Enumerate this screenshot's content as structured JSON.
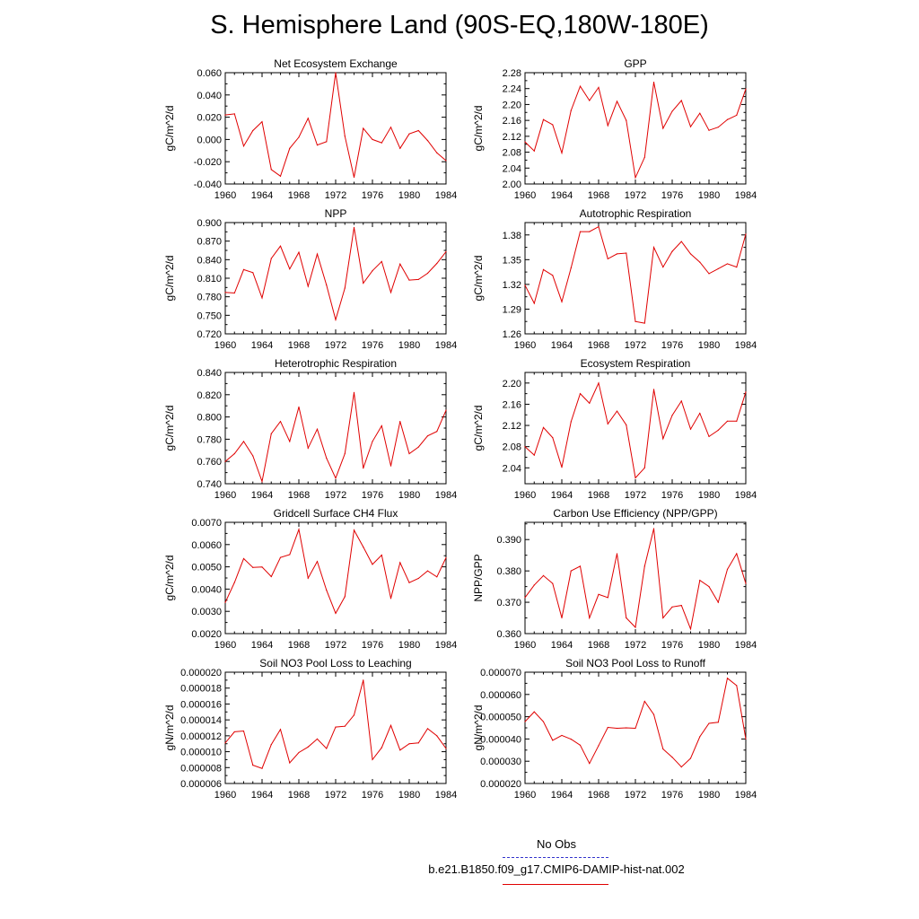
{
  "page": {
    "title": "S. Hemisphere Land (90S-EQ,180W-180E)"
  },
  "legend": {
    "obs_label": "No Obs",
    "obs_color": "#3333cc",
    "obs_style": "dashed",
    "model_label": "b.e21.B1850.f09_g17.CMIP6-DAMIP-hist-nat.002",
    "model_color": "#e00000"
  },
  "chart_data": [
    {
      "type": "line",
      "title": "Net Ecosystem Exchange",
      "ylabel": "gC/m^2/d",
      "xlim": [
        1960,
        1984
      ],
      "ylim": [
        -0.04,
        0.06
      ],
      "yticks": [
        "-0.040",
        "-0.020",
        "0.000",
        "0.020",
        "0.040",
        "0.060"
      ],
      "xticks": [
        "1960",
        "1964",
        "1968",
        "1972",
        "1976",
        "1980",
        "1984"
      ],
      "x": [
        1960,
        1961,
        1962,
        1963,
        1964,
        1965,
        1966,
        1967,
        1968,
        1969,
        1970,
        1971,
        1972,
        1973,
        1974,
        1975,
        1976,
        1977,
        1978,
        1979,
        1980,
        1981,
        1982,
        1983,
        1984
      ],
      "y": [
        0.022,
        0.023,
        -0.006,
        0.008,
        0.016,
        -0.027,
        -0.033,
        -0.008,
        0.002,
        0.019,
        -0.005,
        -0.002,
        0.06,
        0.003,
        -0.034,
        0.01,
        0.0,
        -0.003,
        0.011,
        -0.008,
        0.005,
        0.008,
        -0.001,
        -0.012,
        -0.019
      ],
      "color": "#e00000"
    },
    {
      "type": "line",
      "title": "GPP",
      "ylabel": "gC/m^2/d",
      "xlim": [
        1960,
        1984
      ],
      "ylim": [
        2.0,
        2.28
      ],
      "yticks": [
        "2.00",
        "2.04",
        "2.08",
        "2.12",
        "2.16",
        "2.20",
        "2.24",
        "2.28"
      ],
      "xticks": [
        "1960",
        "1964",
        "1968",
        "1972",
        "1976",
        "1980",
        "1984"
      ],
      "x": [
        1960,
        1961,
        1962,
        1963,
        1964,
        1965,
        1966,
        1967,
        1968,
        1969,
        1970,
        1971,
        1972,
        1973,
        1974,
        1975,
        1976,
        1977,
        1978,
        1979,
        1980,
        1981,
        1982,
        1983,
        1984
      ],
      "y": [
        2.106,
        2.083,
        2.162,
        2.149,
        2.078,
        2.185,
        2.246,
        2.21,
        2.243,
        2.147,
        2.208,
        2.16,
        2.016,
        2.067,
        2.256,
        2.14,
        2.183,
        2.21,
        2.144,
        2.178,
        2.135,
        2.143,
        2.162,
        2.173,
        2.239
      ],
      "color": "#e00000"
    },
    {
      "type": "line",
      "title": "NPP",
      "ylabel": "gC/m^2/d",
      "xlim": [
        1960,
        1984
      ],
      "ylim": [
        0.72,
        0.9
      ],
      "yticks": [
        "0.720",
        "0.750",
        "0.780",
        "0.810",
        "0.840",
        "0.870",
        "0.900"
      ],
      "xticks": [
        "1960",
        "1964",
        "1968",
        "1972",
        "1976",
        "1980",
        "1984"
      ],
      "x": [
        1960,
        1961,
        1962,
        1963,
        1964,
        1965,
        1966,
        1967,
        1968,
        1969,
        1970,
        1971,
        1972,
        1973,
        1974,
        1975,
        1976,
        1977,
        1978,
        1979,
        1980,
        1981,
        1982,
        1983,
        1984
      ],
      "y": [
        0.787,
        0.786,
        0.824,
        0.819,
        0.778,
        0.842,
        0.862,
        0.825,
        0.852,
        0.797,
        0.849,
        0.799,
        0.743,
        0.794,
        0.892,
        0.802,
        0.822,
        0.837,
        0.787,
        0.833,
        0.807,
        0.808,
        0.818,
        0.834,
        0.853
      ],
      "color": "#e00000"
    },
    {
      "type": "line",
      "title": "Autotrophic Respiration",
      "ylabel": "gC/m^2/d",
      "xlim": [
        1960,
        1984
      ],
      "ylim": [
        1.26,
        1.395
      ],
      "yticks": [
        "1.26",
        "1.29",
        "1.32",
        "1.35",
        "1.38"
      ],
      "xticks": [
        "1960",
        "1964",
        "1968",
        "1972",
        "1976",
        "1980",
        "1984"
      ],
      "x": [
        1960,
        1961,
        1962,
        1963,
        1964,
        1965,
        1966,
        1967,
        1968,
        1969,
        1970,
        1971,
        1972,
        1973,
        1974,
        1975,
        1976,
        1977,
        1978,
        1979,
        1980,
        1981,
        1982,
        1983,
        1984
      ],
      "y": [
        1.319,
        1.297,
        1.338,
        1.331,
        1.299,
        1.34,
        1.384,
        1.384,
        1.39,
        1.351,
        1.357,
        1.358,
        1.275,
        1.273,
        1.365,
        1.341,
        1.36,
        1.372,
        1.357,
        1.347,
        1.333,
        1.339,
        1.345,
        1.341,
        1.381
      ],
      "color": "#e00000"
    },
    {
      "type": "line",
      "title": "Heterotrophic Respiration",
      "ylabel": "gC/m^2/d",
      "xlim": [
        1960,
        1984
      ],
      "ylim": [
        0.74,
        0.84
      ],
      "yticks": [
        "0.740",
        "0.760",
        "0.780",
        "0.800",
        "0.820",
        "0.840"
      ],
      "xticks": [
        "1960",
        "1964",
        "1968",
        "1972",
        "1976",
        "1980",
        "1984"
      ],
      "x": [
        1960,
        1961,
        1962,
        1963,
        1964,
        1965,
        1966,
        1967,
        1968,
        1969,
        1970,
        1971,
        1972,
        1973,
        1974,
        1975,
        1976,
        1977,
        1978,
        1979,
        1980,
        1981,
        1982,
        1983,
        1984
      ],
      "y": [
        0.76,
        0.767,
        0.778,
        0.765,
        0.742,
        0.785,
        0.796,
        0.778,
        0.809,
        0.772,
        0.789,
        0.763,
        0.745,
        0.767,
        0.822,
        0.754,
        0.778,
        0.792,
        0.756,
        0.796,
        0.767,
        0.773,
        0.783,
        0.787,
        0.806
      ],
      "color": "#e00000"
    },
    {
      "type": "line",
      "title": "Ecosystem Respiration",
      "ylabel": "gC/m^2/d",
      "xlim": [
        1960,
        1984
      ],
      "ylim": [
        2.01,
        2.22
      ],
      "yticks": [
        "2.04",
        "2.08",
        "2.12",
        "2.16",
        "2.20"
      ],
      "xticks": [
        "1960",
        "1964",
        "1968",
        "1972",
        "1976",
        "1980",
        "1984"
      ],
      "x": [
        1960,
        1961,
        1962,
        1963,
        1964,
        1965,
        1966,
        1967,
        1968,
        1969,
        1970,
        1971,
        1972,
        1973,
        1974,
        1975,
        1976,
        1977,
        1978,
        1979,
        1980,
        1981,
        1982,
        1983,
        1984
      ],
      "y": [
        2.08,
        2.064,
        2.116,
        2.097,
        2.041,
        2.127,
        2.18,
        2.162,
        2.2,
        2.123,
        2.147,
        2.121,
        2.021,
        2.04,
        2.188,
        2.095,
        2.139,
        2.166,
        2.113,
        2.143,
        2.099,
        2.111,
        2.128,
        2.128,
        2.183
      ],
      "color": "#e00000"
    },
    {
      "type": "line",
      "title": "Gridcell Surface CH4 Flux",
      "ylabel": "gC/m^2/d",
      "xlim": [
        1960,
        1984
      ],
      "ylim": [
        0.002,
        0.007
      ],
      "yticks": [
        "0.0020",
        "0.0030",
        "0.0040",
        "0.0050",
        "0.0060",
        "0.0070"
      ],
      "xticks": [
        "1960",
        "1964",
        "1968",
        "1972",
        "1976",
        "1980",
        "1984"
      ],
      "x": [
        1960,
        1961,
        1962,
        1963,
        1964,
        1965,
        1966,
        1967,
        1968,
        1969,
        1970,
        1971,
        1972,
        1973,
        1974,
        1975,
        1976,
        1977,
        1978,
        1979,
        1980,
        1981,
        1982,
        1983,
        1984
      ],
      "y": [
        0.0034,
        0.0043,
        0.00537,
        0.00497,
        0.00499,
        0.00456,
        0.00542,
        0.00555,
        0.00668,
        0.00449,
        0.00524,
        0.00395,
        0.00291,
        0.00366,
        0.00665,
        0.00589,
        0.00511,
        0.00553,
        0.00358,
        0.00519,
        0.00429,
        0.00448,
        0.00482,
        0.00455,
        0.00541
      ],
      "color": "#e00000"
    },
    {
      "type": "line",
      "title": "Carbon Use Efficiency (NPP/GPP)",
      "ylabel": "NPP/GPP",
      "xlim": [
        1960,
        1984
      ],
      "ylim": [
        0.36,
        0.3955
      ],
      "yticks": [
        "0.360",
        "0.370",
        "0.380",
        "0.390"
      ],
      "xticks": [
        "1960",
        "1964",
        "1968",
        "1972",
        "1976",
        "1980",
        "1984"
      ],
      "x": [
        1960,
        1961,
        1962,
        1963,
        1964,
        1965,
        1966,
        1967,
        1968,
        1969,
        1970,
        1971,
        1972,
        1973,
        1974,
        1975,
        1976,
        1977,
        1978,
        1979,
        1980,
        1981,
        1982,
        1983,
        1984
      ],
      "y": [
        0.3715,
        0.3755,
        0.3785,
        0.376,
        0.365,
        0.38,
        0.3815,
        0.365,
        0.3725,
        0.3715,
        0.3855,
        0.365,
        0.362,
        0.3815,
        0.3935,
        0.365,
        0.3685,
        0.369,
        0.3615,
        0.377,
        0.375,
        0.37,
        0.3805,
        0.3855,
        0.376
      ],
      "color": "#e00000"
    },
    {
      "type": "line",
      "title": "Soil NO3 Pool Loss to Leaching",
      "ylabel": "gN/m^2/d",
      "xlim": [
        1960,
        1984
      ],
      "ylim": [
        6e-06,
        2e-05
      ],
      "yticks": [
        "0.000006",
        "0.000008",
        "0.000010",
        "0.000012",
        "0.000014",
        "0.000016",
        "0.000018",
        "0.000020"
      ],
      "xticks": [
        "1960",
        "1964",
        "1968",
        "1972",
        "1976",
        "1980",
        "1984"
      ],
      "x": [
        1960,
        1961,
        1962,
        1963,
        1964,
        1965,
        1966,
        1967,
        1968,
        1969,
        1970,
        1971,
        1972,
        1973,
        1974,
        1975,
        1976,
        1977,
        1978,
        1979,
        1980,
        1981,
        1982,
        1983,
        1984
      ],
      "y": [
        1.11e-05,
        1.25e-05,
        1.26e-05,
        8.3e-06,
        7.9e-06,
        1.09e-05,
        1.28e-05,
        8.6e-06,
        9.9e-06,
        1.06e-05,
        1.16e-05,
        1.04e-05,
        1.31e-05,
        1.32e-05,
        1.46e-05,
        1.9e-05,
        9e-06,
        1.05e-05,
        1.33e-05,
        1.02e-05,
        1.1e-05,
        1.11e-05,
        1.29e-05,
        1.2e-05,
        1.04e-05
      ],
      "color": "#e00000"
    },
    {
      "type": "line",
      "title": "Soil NO3 Pool Loss to Runoff",
      "ylabel": "gN/m^2/d",
      "xlim": [
        1960,
        1984
      ],
      "ylim": [
        2e-05,
        7e-05
      ],
      "yticks": [
        "0.000020",
        "0.000030",
        "0.000040",
        "0.000050",
        "0.000060",
        "0.000070"
      ],
      "xticks": [
        "1960",
        "1964",
        "1968",
        "1972",
        "1976",
        "1980",
        "1984"
      ],
      "x": [
        1960,
        1961,
        1962,
        1963,
        1964,
        1965,
        1966,
        1967,
        1968,
        1969,
        1970,
        1971,
        1972,
        1973,
        1974,
        1975,
        1976,
        1977,
        1978,
        1979,
        1980,
        1981,
        1982,
        1983,
        1984
      ],
      "y": [
        4.78e-05,
        5.22e-05,
        4.78e-05,
        3.94e-05,
        4.16e-05,
        3.99e-05,
        3.72e-05,
        2.9e-05,
        3.7e-05,
        4.52e-05,
        4.48e-05,
        4.5e-05,
        4.48e-05,
        5.69e-05,
        5.1e-05,
        3.55e-05,
        3.18e-05,
        2.74e-05,
        3.13e-05,
        4.1e-05,
        4.7e-05,
        4.75e-05,
        6.73e-05,
        6.4e-05,
        4e-05
      ],
      "color": "#e00000"
    }
  ]
}
